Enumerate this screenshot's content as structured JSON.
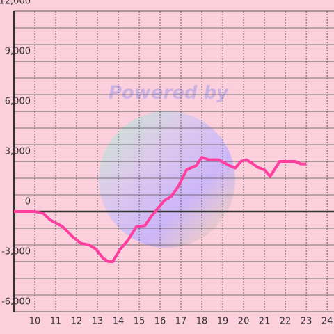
{
  "chart_data": {
    "type": "line",
    "watermark": "Powered by",
    "x": [
      9,
      10,
      10.4,
      10.73,
      11.33,
      11.8,
      12.2,
      12.6,
      12.93,
      13.27,
      13.53,
      13.73,
      14.07,
      14.47,
      14.87,
      15.27,
      15.6,
      15.87,
      16.2,
      16.53,
      16.87,
      17.27,
      17.73,
      18,
      18.33,
      18.8,
      19.33,
      19.6,
      19.87,
      20.13,
      20.4,
      20.67,
      21,
      21.27,
      21.73,
      22.47,
      22.73,
      23
    ],
    "series": [
      {
        "color": "#ff3fa0",
        "values": [
          0,
          0,
          -100,
          -500,
          -900,
          -1500,
          -1900,
          -2000,
          -2250,
          -2800,
          -3000,
          -3000,
          -2300,
          -1700,
          -900,
          -850,
          -250,
          150,
          650,
          900,
          1500,
          2500,
          2750,
          3250,
          3100,
          3100,
          2750,
          2600,
          3000,
          3100,
          2900,
          2650,
          2500,
          2100,
          3000,
          3000,
          2850,
          2850
        ]
      }
    ],
    "xlim": [
      9,
      24.33
    ],
    "xticks": [
      10,
      11,
      12,
      13,
      14,
      15,
      16,
      17,
      18,
      19,
      20,
      21,
      22,
      23,
      24
    ],
    "ylim": [
      -6000,
      12000
    ],
    "yticks": [
      {
        "value": -6000,
        "label": "-6,000"
      },
      {
        "value": -3000,
        "label": "-3,000"
      },
      0,
      {
        "value": 3000,
        "label": "3,000"
      },
      {
        "value": 6000,
        "label": "6,000"
      },
      {
        "value": 9000,
        "label": "9,000"
      },
      {
        "value": 12000,
        "label": "12,000"
      }
    ],
    "ygrid": [
      -5000,
      -4000,
      -2000,
      -1000,
      1000,
      2000,
      4000,
      5000,
      7000,
      8000,
      10000,
      11000
    ],
    "grid": true
  }
}
